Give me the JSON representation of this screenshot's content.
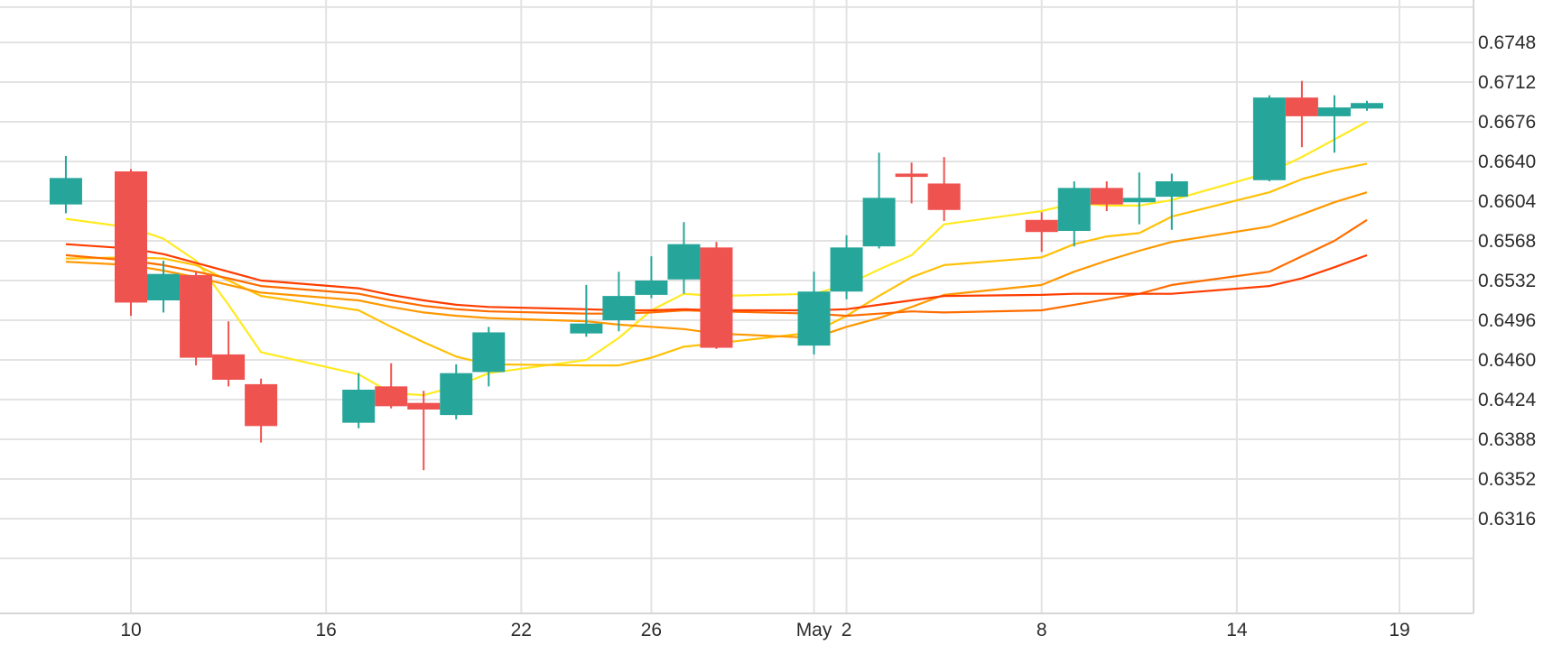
{
  "chart_data": {
    "type": "candlestick",
    "x_ticks": [
      "10",
      "16",
      "22",
      "26",
      "May",
      "2",
      "8",
      "14",
      "19"
    ],
    "y_ticks": [
      "0.6748",
      "0.6712",
      "0.6676",
      "0.6640",
      "0.6604",
      "0.6568",
      "0.6532",
      "0.6496",
      "0.6460",
      "0.6424",
      "0.6388",
      "0.6352",
      "0.6316"
    ],
    "ylim": [
      0.628,
      0.6782
    ],
    "grid": true,
    "colors": {
      "up": "#26a69a",
      "down": "#ef5350",
      "grid": "#e3e3e3",
      "axis": "#d6d6d6"
    },
    "candles": [
      {
        "date": "2022-04-08",
        "open": 0.6601,
        "high": 0.6645,
        "low": 0.6593,
        "close": 0.6625
      },
      {
        "date": "2022-04-10",
        "open": 0.6631,
        "high": 0.6633,
        "low": 0.65,
        "close": 0.6512
      },
      {
        "date": "2022-04-11",
        "open": 0.6514,
        "high": 0.655,
        "low": 0.6503,
        "close": 0.6538
      },
      {
        "date": "2022-04-12",
        "open": 0.6537,
        "high": 0.654,
        "low": 0.6455,
        "close": 0.6462
      },
      {
        "date": "2022-04-13",
        "open": 0.6465,
        "high": 0.6495,
        "low": 0.6436,
        "close": 0.6442
      },
      {
        "date": "2022-04-14",
        "open": 0.6438,
        "high": 0.6443,
        "low": 0.6385,
        "close": 0.64
      },
      {
        "date": "2022-04-17",
        "open": 0.6403,
        "high": 0.6448,
        "low": 0.6398,
        "close": 0.6433
      },
      {
        "date": "2022-04-18",
        "open": 0.6436,
        "high": 0.6457,
        "low": 0.6416,
        "close": 0.6418
      },
      {
        "date": "2022-04-19",
        "open": 0.6421,
        "high": 0.6432,
        "low": 0.636,
        "close": 0.6415
      },
      {
        "date": "2022-04-20",
        "open": 0.641,
        "high": 0.6456,
        "low": 0.6406,
        "close": 0.6448
      },
      {
        "date": "2022-04-21",
        "open": 0.6449,
        "high": 0.649,
        "low": 0.6436,
        "close": 0.6485
      },
      {
        "date": "2022-04-24",
        "open": 0.6484,
        "high": 0.6528,
        "low": 0.6481,
        "close": 0.6493
      },
      {
        "date": "2022-04-25",
        "open": 0.6496,
        "high": 0.654,
        "low": 0.6486,
        "close": 0.6518
      },
      {
        "date": "2022-04-26",
        "open": 0.6519,
        "high": 0.6554,
        "low": 0.6516,
        "close": 0.6532
      },
      {
        "date": "2022-04-27",
        "open": 0.6533,
        "high": 0.6585,
        "low": 0.652,
        "close": 0.6565
      },
      {
        "date": "2022-04-28",
        "open": 0.6562,
        "high": 0.6567,
        "low": 0.647,
        "close": 0.6471
      },
      {
        "date": "2022-05-01",
        "open": 0.6473,
        "high": 0.654,
        "low": 0.6465,
        "close": 0.6522
      },
      {
        "date": "2022-05-02",
        "open": 0.6522,
        "high": 0.6573,
        "low": 0.6515,
        "close": 0.6562
      },
      {
        "date": "2022-05-03",
        "open": 0.6563,
        "high": 0.6648,
        "low": 0.6561,
        "close": 0.6607
      },
      {
        "date": "2022-05-04",
        "open": 0.6629,
        "high": 0.6639,
        "low": 0.6602,
        "close": 0.6626
      },
      {
        "date": "2022-05-05",
        "open": 0.662,
        "high": 0.6644,
        "low": 0.6586,
        "close": 0.6596
      },
      {
        "date": "2022-05-08",
        "open": 0.6587,
        "high": 0.6594,
        "low": 0.6558,
        "close": 0.6576
      },
      {
        "date": "2022-05-09",
        "open": 0.6577,
        "high": 0.6622,
        "low": 0.6563,
        "close": 0.6616
      },
      {
        "date": "2022-05-10",
        "open": 0.6616,
        "high": 0.6622,
        "low": 0.6595,
        "close": 0.6601
      },
      {
        "date": "2022-05-11",
        "open": 0.6603,
        "high": 0.663,
        "low": 0.6583,
        "close": 0.6607
      },
      {
        "date": "2022-05-12",
        "open": 0.6608,
        "high": 0.6629,
        "low": 0.6578,
        "close": 0.6622
      },
      {
        "date": "2022-05-15",
        "open": 0.6623,
        "high": 0.67,
        "low": 0.6622,
        "close": 0.6698
      },
      {
        "date": "2022-05-16",
        "open": 0.6698,
        "high": 0.6713,
        "low": 0.6653,
        "close": 0.6681
      },
      {
        "date": "2022-05-17",
        "open": 0.6681,
        "high": 0.67,
        "low": 0.6648,
        "close": 0.6689
      },
      {
        "date": "2022-05-18",
        "open": 0.6688,
        "high": 0.6695,
        "low": 0.6686,
        "close": 0.6693
      }
    ],
    "series": [
      {
        "color": "#ffea20",
        "values": [
          0.6588,
          0.658,
          0.657,
          0.655,
          0.651,
          0.6467,
          0.6447,
          0.643,
          0.6428,
          0.6436,
          0.6448,
          0.646,
          0.648,
          0.6505,
          0.652,
          0.6518,
          0.652,
          0.6528,
          0.6542,
          0.6555,
          0.6583,
          0.6595,
          0.6602,
          0.66,
          0.66,
          0.6605,
          0.663,
          0.6644,
          0.666,
          0.6676
        ]
      },
      {
        "color": "#ffc107",
        "values": [
          0.6552,
          0.6553,
          0.6552,
          0.6546,
          0.6532,
          0.6518,
          0.6505,
          0.649,
          0.6476,
          0.6463,
          0.6456,
          0.6455,
          0.6455,
          0.6462,
          0.6472,
          0.6475,
          0.6485,
          0.65,
          0.6518,
          0.6535,
          0.6546,
          0.6553,
          0.6565,
          0.6572,
          0.6575,
          0.659,
          0.6612,
          0.6624,
          0.6632,
          0.6638
        ]
      },
      {
        "color": "#ff9800",
        "values": [
          0.6549,
          0.6546,
          0.6541,
          0.6535,
          0.6528,
          0.6521,
          0.6514,
          0.6508,
          0.6503,
          0.65,
          0.6498,
          0.6495,
          0.6492,
          0.649,
          0.6488,
          0.6484,
          0.648,
          0.649,
          0.6498,
          0.6508,
          0.6519,
          0.6528,
          0.654,
          0.655,
          0.6559,
          0.6567,
          0.6581,
          0.6592,
          0.6603,
          0.6612
        ]
      },
      {
        "color": "#ff6d00",
        "values": [
          0.6555,
          0.655,
          0.6546,
          0.654,
          0.6534,
          0.6527,
          0.652,
          0.6514,
          0.6509,
          0.6506,
          0.6504,
          0.6502,
          0.6502,
          0.6503,
          0.6505,
          0.6504,
          0.6502,
          0.65,
          0.6502,
          0.6504,
          0.6503,
          0.6505,
          0.651,
          0.6515,
          0.652,
          0.6528,
          0.654,
          0.6554,
          0.6568,
          0.6587
        ]
      },
      {
        "color": "#ff3d00",
        "values": [
          0.6565,
          0.6561,
          0.6556,
          0.6548,
          0.654,
          0.6532,
          0.6525,
          0.6519,
          0.6514,
          0.651,
          0.6508,
          0.6506,
          0.6505,
          0.6505,
          0.6506,
          0.6505,
          0.6505,
          0.6506,
          0.651,
          0.6514,
          0.6518,
          0.6519,
          0.652,
          0.652,
          0.652,
          0.652,
          0.6527,
          0.6534,
          0.6544,
          0.6555
        ]
      }
    ]
  }
}
